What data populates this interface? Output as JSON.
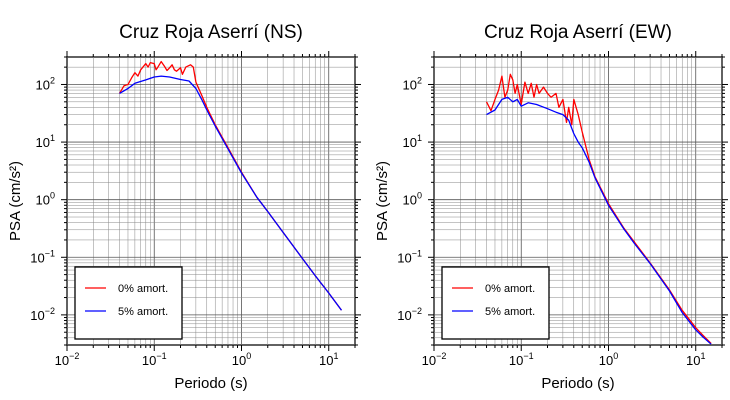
{
  "figure": {
    "panels": [
      {
        "title": "Cruz Roja Aserrí (NS)",
        "xlabel": "Periodo (s)",
        "ylabel": "PSA (cm/s²)"
      },
      {
        "title": "Cruz Roja Aserrí (EW)",
        "xlabel": "Periodo (s)",
        "ylabel": "PSA (cm/s²)"
      }
    ]
  },
  "chart_data": [
    {
      "type": "line",
      "title": "Cruz Roja Aserrí (NS)",
      "xlabel": "Periodo (s)",
      "ylabel": "PSA (cm/s²)",
      "xscale": "log",
      "yscale": "log",
      "xlim": [
        0.01,
        20
      ],
      "ylim": [
        0.003,
        300
      ],
      "x_ticks": [
        "10⁻²",
        "10⁻¹",
        "10⁰",
        "10¹"
      ],
      "y_ticks": [
        "10⁻²",
        "10⁻¹",
        "10⁰",
        "10¹",
        "10²"
      ],
      "grid": true,
      "legend_position": "bottom-left",
      "series": [
        {
          "name": "0% amort.",
          "color": "#ff0000",
          "points": [
            [
              0.04,
              70
            ],
            [
              0.045,
              95
            ],
            [
              0.05,
              100
            ],
            [
              0.055,
              130
            ],
            [
              0.06,
              160
            ],
            [
              0.065,
              140
            ],
            [
              0.07,
              180
            ],
            [
              0.08,
              230
            ],
            [
              0.085,
              200
            ],
            [
              0.09,
              240
            ],
            [
              0.1,
              230
            ],
            [
              0.105,
              180
            ],
            [
              0.11,
              200
            ],
            [
              0.12,
              250
            ],
            [
              0.13,
              210
            ],
            [
              0.14,
              175
            ],
            [
              0.15,
              195
            ],
            [
              0.16,
              220
            ],
            [
              0.17,
              180
            ],
            [
              0.18,
              170
            ],
            [
              0.2,
              195
            ],
            [
              0.21,
              150
            ],
            [
              0.23,
              200
            ],
            [
              0.26,
              220
            ],
            [
              0.28,
              200
            ],
            [
              0.3,
              110
            ],
            [
              0.35,
              65
            ],
            [
              0.4,
              40
            ],
            [
              0.5,
              20
            ],
            [
              0.7,
              8
            ],
            [
              1,
              3
            ],
            [
              1.5,
              1.1
            ],
            [
              2,
              0.62
            ],
            [
              3,
              0.27
            ],
            [
              5,
              0.095
            ],
            [
              7,
              0.048
            ],
            [
              10,
              0.024
            ],
            [
              14,
              0.012
            ]
          ]
        },
        {
          "name": "5% amort.",
          "color": "#0000ff",
          "points": [
            [
              0.04,
              70
            ],
            [
              0.05,
              85
            ],
            [
              0.06,
              105
            ],
            [
              0.08,
              120
            ],
            [
              0.1,
              135
            ],
            [
              0.12,
              140
            ],
            [
              0.15,
              135
            ],
            [
              0.2,
              122
            ],
            [
              0.25,
              115
            ],
            [
              0.3,
              85
            ],
            [
              0.35,
              55
            ],
            [
              0.4,
              36
            ],
            [
              0.5,
              19
            ],
            [
              0.7,
              7.6
            ],
            [
              1,
              2.9
            ],
            [
              1.5,
              1.1
            ],
            [
              2,
              0.62
            ],
            [
              3,
              0.27
            ],
            [
              5,
              0.095
            ],
            [
              7,
              0.048
            ],
            [
              10,
              0.024
            ],
            [
              14,
              0.012
            ]
          ]
        }
      ]
    },
    {
      "type": "line",
      "title": "Cruz Roja Aserrí (EW)",
      "xlabel": "Periodo (s)",
      "ylabel": "PSA (cm/s²)",
      "xscale": "log",
      "yscale": "log",
      "xlim": [
        0.01,
        20
      ],
      "ylim": [
        0.003,
        300
      ],
      "x_ticks": [
        "10⁻²",
        "10⁻¹",
        "10⁰",
        "10¹"
      ],
      "y_ticks": [
        "10⁻²",
        "10⁻¹",
        "10⁰",
        "10¹",
        "10²"
      ],
      "grid": true,
      "legend_position": "bottom-left",
      "series": [
        {
          "name": "0% amort.",
          "color": "#ff0000",
          "points": [
            [
              0.04,
              50
            ],
            [
              0.045,
              35
            ],
            [
              0.05,
              55
            ],
            [
              0.055,
              80
            ],
            [
              0.06,
              140
            ],
            [
              0.065,
              60
            ],
            [
              0.07,
              80
            ],
            [
              0.075,
              150
            ],
            [
              0.08,
              120
            ],
            [
              0.085,
              70
            ],
            [
              0.09,
              100
            ],
            [
              0.1,
              45
            ],
            [
              0.11,
              110
            ],
            [
              0.12,
              70
            ],
            [
              0.13,
              105
            ],
            [
              0.14,
              60
            ],
            [
              0.15,
              100
            ],
            [
              0.16,
              70
            ],
            [
              0.18,
              90
            ],
            [
              0.2,
              70
            ],
            [
              0.22,
              60
            ],
            [
              0.25,
              70
            ],
            [
              0.27,
              40
            ],
            [
              0.3,
              55
            ],
            [
              0.33,
              22
            ],
            [
              0.35,
              40
            ],
            [
              0.38,
              20
            ],
            [
              0.4,
              55
            ],
            [
              0.45,
              30
            ],
            [
              0.5,
              15
            ],
            [
              0.6,
              5
            ],
            [
              0.7,
              2.5
            ],
            [
              1,
              0.85
            ],
            [
              1.5,
              0.32
            ],
            [
              2,
              0.18
            ],
            [
              3,
              0.08
            ],
            [
              5,
              0.027
            ],
            [
              7,
              0.012
            ],
            [
              10,
              0.006
            ],
            [
              12,
              0.0045
            ],
            [
              15,
              0.0032
            ]
          ]
        },
        {
          "name": "5% amort.",
          "color": "#0000ff",
          "points": [
            [
              0.04,
              30
            ],
            [
              0.05,
              36
            ],
            [
              0.06,
              55
            ],
            [
              0.07,
              60
            ],
            [
              0.08,
              50
            ],
            [
              0.09,
              55
            ],
            [
              0.1,
              42
            ],
            [
              0.12,
              48
            ],
            [
              0.15,
              45
            ],
            [
              0.2,
              38
            ],
            [
              0.25,
              33
            ],
            [
              0.3,
              30
            ],
            [
              0.35,
              24
            ],
            [
              0.4,
              14
            ],
            [
              0.45,
              10
            ],
            [
              0.5,
              8
            ],
            [
              0.6,
              4.5
            ],
            [
              0.7,
              2.4
            ],
            [
              1,
              0.8
            ],
            [
              1.5,
              0.31
            ],
            [
              2,
              0.17
            ],
            [
              3,
              0.078
            ],
            [
              5,
              0.026
            ],
            [
              7,
              0.011
            ],
            [
              10,
              0.0055
            ],
            [
              12,
              0.0042
            ],
            [
              15,
              0.0031
            ]
          ]
        }
      ]
    }
  ]
}
